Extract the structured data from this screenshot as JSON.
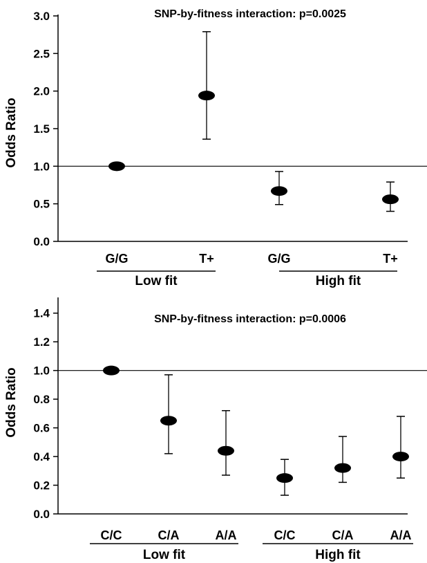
{
  "chart_data": [
    {
      "type": "scatter",
      "annotation": "SNP-by-fitness interaction: p=0.0025",
      "ylabel": "Odds Ratio",
      "ylim": [
        0,
        3.0
      ],
      "yticks": [
        "0.0",
        "0.5",
        "1.0",
        "1.5",
        "2.0",
        "2.5",
        "3.0"
      ],
      "reference_line": 1.0,
      "groups": [
        {
          "label": "Low fit",
          "categories": [
            "G/G",
            "T+"
          ]
        },
        {
          "label": "High fit",
          "categories": [
            "G/G",
            "T+"
          ]
        }
      ],
      "points": [
        {
          "value": 1.0,
          "lower": 1.0,
          "upper": 1.0
        },
        {
          "value": 1.94,
          "lower": 1.36,
          "upper": 2.79
        },
        {
          "value": 0.67,
          "lower": 0.49,
          "upper": 0.93
        },
        {
          "value": 0.56,
          "lower": 0.4,
          "upper": 0.79
        }
      ]
    },
    {
      "type": "scatter",
      "annotation": "SNP-by-fitness interaction: p=0.0006",
      "ylabel": "Odds Ratio",
      "ylim": [
        0,
        1.5
      ],
      "yticks": [
        "0.0",
        "0.2",
        "0.4",
        "0.6",
        "0.8",
        "1.0",
        "1.2",
        "1.4"
      ],
      "reference_line": 1.0,
      "groups": [
        {
          "label": "Low fit",
          "categories": [
            "C/C",
            "C/A",
            "A/A"
          ]
        },
        {
          "label": "High fit",
          "categories": [
            "C/C",
            "C/A",
            "A/A"
          ]
        }
      ],
      "points": [
        {
          "value": 1.0,
          "lower": 1.0,
          "upper": 1.0
        },
        {
          "value": 0.65,
          "lower": 0.42,
          "upper": 0.97
        },
        {
          "value": 0.44,
          "lower": 0.27,
          "upper": 0.72
        },
        {
          "value": 0.25,
          "lower": 0.13,
          "upper": 0.38
        },
        {
          "value": 0.32,
          "lower": 0.22,
          "upper": 0.54
        },
        {
          "value": 0.4,
          "lower": 0.25,
          "upper": 0.68
        }
      ]
    }
  ]
}
